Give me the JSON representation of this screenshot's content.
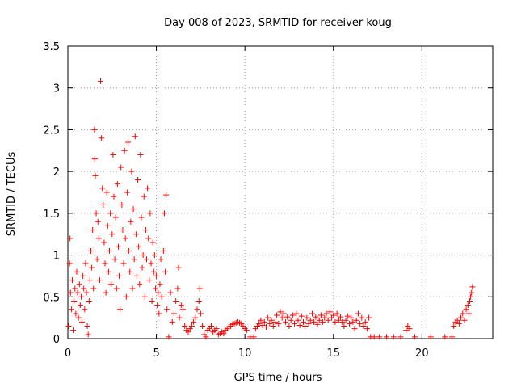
{
  "chart_data": {
    "type": "scatter",
    "title": "Day 008 of 2023, SRMTID for receiver koug",
    "xlabel": "GPS time / hours",
    "ylabel": "SRMTID / TECUs",
    "xlim": [
      0,
      24
    ],
    "ylim": [
      0,
      3.5
    ],
    "xticks": [
      "0",
      "5",
      "10",
      "15",
      "20"
    ],
    "xtick_values": [
      0,
      5,
      10,
      15,
      20
    ],
    "yticks": [
      "0",
      "0.5",
      "1",
      "1.5",
      "2",
      "2.5",
      "3",
      "3.5"
    ],
    "ytick_values": [
      0,
      0.5,
      1,
      1.5,
      2,
      2.5,
      3,
      3.5
    ],
    "grid": true,
    "marker": "+",
    "color": "#ff0000",
    "series": [
      {
        "name": "SRMTID",
        "points": [
          [
            0.05,
            0.15
          ],
          [
            0.1,
            0.9
          ],
          [
            0.12,
            1.2
          ],
          [
            0.15,
            0.55
          ],
          [
            0.2,
            0.35
          ],
          [
            0.25,
            0.7
          ],
          [
            0.3,
            0.1
          ],
          [
            0.35,
            0.45
          ],
          [
            0.4,
            0.6
          ],
          [
            0.45,
            0.3
          ],
          [
            0.5,
            0.8
          ],
          [
            0.55,
            0.55
          ],
          [
            0.6,
            0.25
          ],
          [
            0.65,
            0.65
          ],
          [
            0.7,
            0.4
          ],
          [
            0.75,
            0.5
          ],
          [
            0.8,
            0.2
          ],
          [
            0.85,
            0.75
          ],
          [
            0.9,
            0.6
          ],
          [
            0.95,
            0.35
          ],
          [
            1.0,
            0.9
          ],
          [
            1.05,
            0.55
          ],
          [
            1.1,
            0.15
          ],
          [
            1.15,
            0.05
          ],
          [
            1.2,
            0.45
          ],
          [
            1.25,
            0.7
          ],
          [
            1.3,
            1.05
          ],
          [
            1.35,
            0.85
          ],
          [
            1.4,
            1.3
          ],
          [
            1.45,
            0.6
          ],
          [
            1.5,
            2.5
          ],
          [
            1.52,
            2.15
          ],
          [
            1.55,
            1.95
          ],
          [
            1.6,
            1.5
          ],
          [
            1.65,
            0.95
          ],
          [
            1.7,
            1.4
          ],
          [
            1.75,
            1.2
          ],
          [
            1.8,
            0.7
          ],
          [
            1.85,
            3.08
          ],
          [
            1.9,
            2.4
          ],
          [
            1.95,
            1.8
          ],
          [
            2.0,
            1.6
          ],
          [
            2.05,
            1.15
          ],
          [
            2.1,
            0.9
          ],
          [
            2.15,
            0.55
          ],
          [
            2.2,
            1.75
          ],
          [
            2.25,
            1.35
          ],
          [
            2.3,
            0.8
          ],
          [
            2.35,
            1.05
          ],
          [
            2.4,
            1.5
          ],
          [
            2.45,
            0.65
          ],
          [
            2.5,
            1.25
          ],
          [
            2.55,
            2.2
          ],
          [
            2.6,
            1.7
          ],
          [
            2.65,
            0.95
          ],
          [
            2.7,
            1.45
          ],
          [
            2.75,
            0.6
          ],
          [
            2.8,
            1.85
          ],
          [
            2.85,
            1.1
          ],
          [
            2.9,
            0.75
          ],
          [
            2.95,
            0.35
          ],
          [
            3.0,
            2.05
          ],
          [
            3.05,
            1.6
          ],
          [
            3.1,
            1.3
          ],
          [
            3.15,
            0.9
          ],
          [
            3.2,
            2.25
          ],
          [
            3.25,
            1.2
          ],
          [
            3.3,
            0.5
          ],
          [
            3.35,
            1.75
          ],
          [
            3.4,
            2.35
          ],
          [
            3.45,
            1.05
          ],
          [
            3.5,
            0.8
          ],
          [
            3.55,
            1.4
          ],
          [
            3.6,
            2.0
          ],
          [
            3.65,
            0.6
          ],
          [
            3.7,
            1.55
          ],
          [
            3.75,
            0.95
          ],
          [
            3.8,
            2.42
          ],
          [
            3.85,
            1.25
          ],
          [
            3.9,
            0.75
          ],
          [
            3.95,
            1.9
          ],
          [
            4.0,
            1.1
          ],
          [
            4.05,
            0.65
          ],
          [
            4.1,
            2.2
          ],
          [
            4.15,
            1.45
          ],
          [
            4.2,
            0.85
          ],
          [
            4.25,
            1.0
          ],
          [
            4.3,
            1.7
          ],
          [
            4.35,
            0.5
          ],
          [
            4.4,
            1.3
          ],
          [
            4.45,
            0.95
          ],
          [
            4.5,
            1.8
          ],
          [
            4.55,
            1.2
          ],
          [
            4.6,
            0.7
          ],
          [
            4.65,
            1.5
          ],
          [
            4.7,
            0.9
          ],
          [
            4.75,
            0.45
          ],
          [
            4.8,
            1.15
          ],
          [
            4.85,
            0.8
          ],
          [
            4.9,
            1.0
          ],
          [
            4.95,
            0.6
          ],
          [
            5.0,
            0.75
          ],
          [
            5.05,
            0.4
          ],
          [
            5.1,
            0.55
          ],
          [
            5.15,
            0.3
          ],
          [
            5.2,
            0.65
          ],
          [
            5.25,
            0.95
          ],
          [
            5.3,
            0.5
          ],
          [
            5.4,
            1.05
          ],
          [
            5.45,
            1.5
          ],
          [
            5.5,
            0.8
          ],
          [
            5.55,
            1.72
          ],
          [
            5.6,
            0.35
          ],
          [
            5.7,
            0.02
          ],
          [
            5.8,
            0.55
          ],
          [
            5.9,
            0.2
          ],
          [
            6.0,
            0.3
          ],
          [
            6.1,
            0.45
          ],
          [
            6.2,
            0.6
          ],
          [
            6.25,
            0.85
          ],
          [
            6.3,
            0.25
          ],
          [
            6.4,
            0.4
          ],
          [
            6.5,
            0.35
          ],
          [
            6.6,
            0.15
          ],
          [
            6.7,
            0.1
          ],
          [
            6.8,
            0.08
          ],
          [
            6.9,
            0.12
          ],
          [
            7.0,
            0.15
          ],
          [
            7.1,
            0.2
          ],
          [
            7.2,
            0.25
          ],
          [
            7.3,
            0.35
          ],
          [
            7.4,
            0.45
          ],
          [
            7.45,
            0.6
          ],
          [
            7.5,
            0.3
          ],
          [
            7.6,
            0.15
          ],
          [
            7.7,
            0.05
          ],
          [
            7.8,
            0.02
          ],
          [
            7.9,
            0.1
          ],
          [
            8.0,
            0.12
          ],
          [
            8.1,
            0.15
          ],
          [
            8.2,
            0.08
          ],
          [
            8.3,
            0.1
          ],
          [
            8.4,
            0.12
          ],
          [
            8.5,
            0.05
          ],
          [
            8.6,
            0.06
          ],
          [
            8.7,
            0.08
          ],
          [
            8.8,
            0.06
          ],
          [
            8.9,
            0.1
          ],
          [
            9.0,
            0.12
          ],
          [
            9.1,
            0.14
          ],
          [
            9.2,
            0.15
          ],
          [
            9.3,
            0.17
          ],
          [
            9.4,
            0.18
          ],
          [
            9.5,
            0.19
          ],
          [
            9.6,
            0.2
          ],
          [
            9.7,
            0.19
          ],
          [
            9.8,
            0.18
          ],
          [
            9.9,
            0.15
          ],
          [
            10.0,
            0.12
          ],
          [
            10.1,
            0.1
          ],
          [
            10.3,
            0.02
          ],
          [
            10.5,
            0.02
          ],
          [
            10.6,
            0.12
          ],
          [
            10.7,
            0.15
          ],
          [
            10.8,
            0.18
          ],
          [
            10.9,
            0.22
          ],
          [
            11.0,
            0.16
          ],
          [
            11.1,
            0.2
          ],
          [
            11.2,
            0.14
          ],
          [
            11.3,
            0.25
          ],
          [
            11.4,
            0.18
          ],
          [
            11.5,
            0.22
          ],
          [
            11.6,
            0.15
          ],
          [
            11.7,
            0.2
          ],
          [
            11.8,
            0.28
          ],
          [
            11.9,
            0.18
          ],
          [
            12.0,
            0.32
          ],
          [
            12.1,
            0.25
          ],
          [
            12.2,
            0.3
          ],
          [
            12.3,
            0.2
          ],
          [
            12.4,
            0.26
          ],
          [
            12.5,
            0.15
          ],
          [
            12.6,
            0.22
          ],
          [
            12.7,
            0.28
          ],
          [
            12.8,
            0.18
          ],
          [
            12.9,
            0.3
          ],
          [
            13.0,
            0.22
          ],
          [
            13.1,
            0.16
          ],
          [
            13.2,
            0.27
          ],
          [
            13.3,
            0.2
          ],
          [
            13.4,
            0.15
          ],
          [
            13.5,
            0.25
          ],
          [
            13.6,
            0.18
          ],
          [
            13.7,
            0.22
          ],
          [
            13.8,
            0.3
          ],
          [
            13.9,
            0.2
          ],
          [
            14.0,
            0.26
          ],
          [
            14.1,
            0.17
          ],
          [
            14.2,
            0.22
          ],
          [
            14.3,
            0.28
          ],
          [
            14.4,
            0.2
          ],
          [
            14.5,
            0.25
          ],
          [
            14.6,
            0.3
          ],
          [
            14.7,
            0.22
          ],
          [
            14.8,
            0.32
          ],
          [
            14.9,
            0.25
          ],
          [
            15.0,
            0.28
          ],
          [
            15.1,
            0.2
          ],
          [
            15.2,
            0.3
          ],
          [
            15.3,
            0.22
          ],
          [
            15.4,
            0.26
          ],
          [
            15.5,
            0.2
          ],
          [
            15.6,
            0.15
          ],
          [
            15.7,
            0.22
          ],
          [
            15.8,
            0.27
          ],
          [
            15.9,
            0.18
          ],
          [
            16.0,
            0.25
          ],
          [
            16.1,
            0.2
          ],
          [
            16.2,
            0.12
          ],
          [
            16.3,
            0.22
          ],
          [
            16.4,
            0.3
          ],
          [
            16.5,
            0.18
          ],
          [
            16.6,
            0.25
          ],
          [
            16.7,
            0.15
          ],
          [
            16.8,
            0.2
          ],
          [
            16.9,
            0.12
          ],
          [
            17.0,
            0.25
          ],
          [
            17.1,
            0.02
          ],
          [
            17.3,
            0.02
          ],
          [
            17.6,
            0.02
          ],
          [
            18.0,
            0.02
          ],
          [
            18.4,
            0.02
          ],
          [
            18.8,
            0.02
          ],
          [
            19.1,
            0.1
          ],
          [
            19.2,
            0.15
          ],
          [
            19.3,
            0.12
          ],
          [
            19.6,
            0.02
          ],
          [
            20.5,
            0.02
          ],
          [
            21.3,
            0.02
          ],
          [
            21.7,
            0.02
          ],
          [
            21.8,
            0.15
          ],
          [
            21.9,
            0.2
          ],
          [
            22.0,
            0.22
          ],
          [
            22.1,
            0.18
          ],
          [
            22.2,
            0.25
          ],
          [
            22.3,
            0.3
          ],
          [
            22.4,
            0.22
          ],
          [
            22.5,
            0.35
          ],
          [
            22.6,
            0.4
          ],
          [
            22.65,
            0.3
          ],
          [
            22.7,
            0.45
          ],
          [
            22.75,
            0.5
          ],
          [
            22.8,
            0.55
          ],
          [
            22.85,
            0.62
          ]
        ]
      }
    ]
  }
}
